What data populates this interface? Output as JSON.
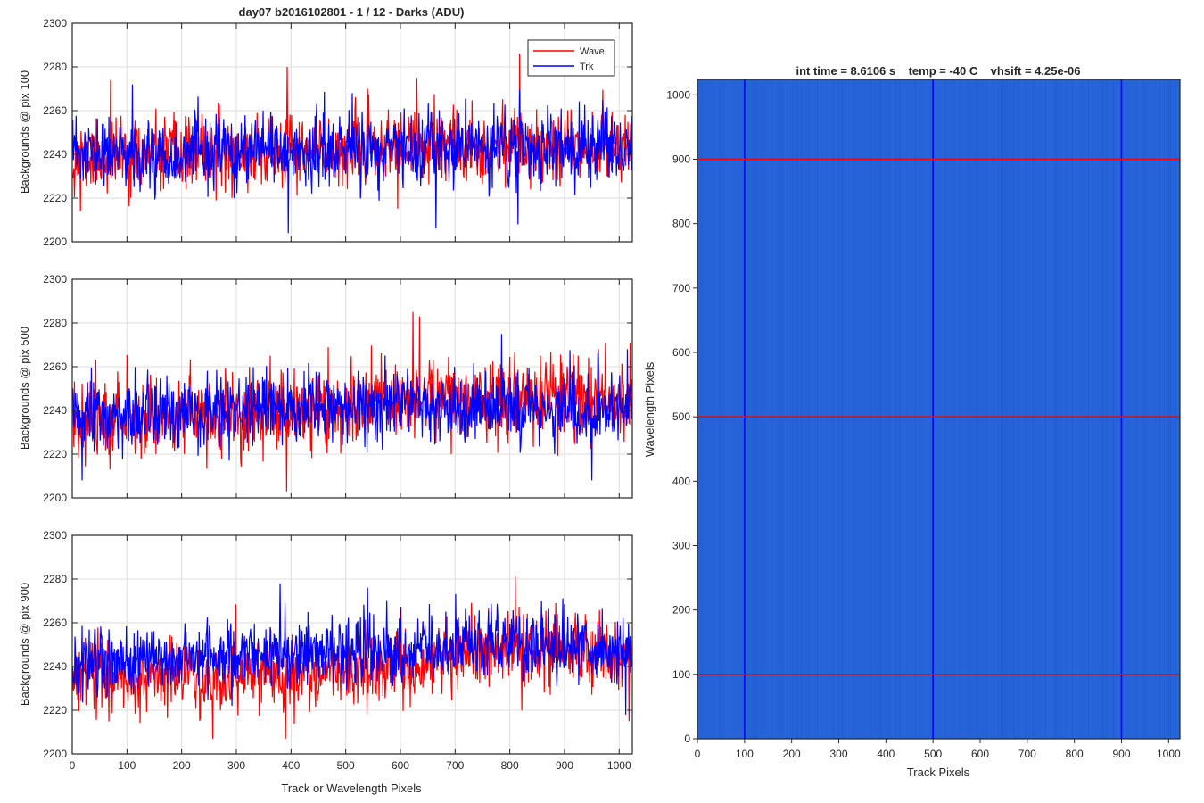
{
  "figure": {
    "background": "#ffffff"
  },
  "chart_data": [
    {
      "type": "line",
      "title": "day07 b2016102801 - 1 / 12 - Darks (ADU)",
      "xlabel": "",
      "ylabel": "Backgrounds @ pix 100",
      "xlim": [
        0,
        1024
      ],
      "ylim": [
        2200,
        2300
      ],
      "xticks": [
        0,
        100,
        200,
        300,
        400,
        500,
        600,
        700,
        800,
        900,
        1000
      ],
      "yticks": [
        2200,
        2220,
        2240,
        2260,
        2280,
        2300
      ],
      "show_xtick_labels": false,
      "grid": true,
      "legend": {
        "position": "top-right",
        "entries": [
          "Wave",
          "Trk"
        ]
      },
      "series": [
        {
          "name": "Wave",
          "color": "#ff0000",
          "mean": 2240,
          "noise": 8,
          "seed": 11,
          "trend": [
            [
              0,
              2238
            ],
            [
              200,
              2240
            ],
            [
              400,
              2241
            ],
            [
              600,
              2243
            ],
            [
              800,
              2245
            ],
            [
              1024,
              2244
            ]
          ],
          "spikes": [
            [
              70,
              2274
            ],
            [
              393,
              2280
            ],
            [
              630,
              2275
            ],
            [
              818,
              2286
            ],
            [
              15,
              2214
            ]
          ]
        },
        {
          "name": "Trk",
          "color": "#0000ff",
          "mean": 2241,
          "noise": 8,
          "seed": 23,
          "trend": [
            [
              0,
              2240
            ],
            [
              200,
              2240
            ],
            [
              400,
              2241
            ],
            [
              600,
              2242
            ],
            [
              800,
              2243
            ],
            [
              1024,
              2243
            ]
          ],
          "spikes": [
            [
              110,
              2272
            ],
            [
              395,
              2204
            ],
            [
              512,
              2268
            ],
            [
              665,
              2206
            ],
            [
              815,
              2208
            ]
          ]
        }
      ]
    },
    {
      "type": "line",
      "title": "",
      "xlabel": "",
      "ylabel": "Backgrounds @ pix 500",
      "xlim": [
        0,
        1024
      ],
      "ylim": [
        2200,
        2300
      ],
      "xticks": [
        0,
        100,
        200,
        300,
        400,
        500,
        600,
        700,
        800,
        900,
        1000
      ],
      "yticks": [
        2200,
        2220,
        2240,
        2260,
        2280,
        2300
      ],
      "show_xtick_labels": false,
      "grid": true,
      "legend": null,
      "series": [
        {
          "name": "Wave",
          "color": "#ff0000",
          "mean": 2240,
          "noise": 9,
          "seed": 37,
          "trend": [
            [
              0,
              2237
            ],
            [
              200,
              2238
            ],
            [
              400,
              2239
            ],
            [
              600,
              2246
            ],
            [
              800,
              2246
            ],
            [
              1024,
              2245
            ]
          ],
          "spikes": [
            [
              623,
              2285
            ],
            [
              635,
              2283
            ],
            [
              392,
              2203
            ],
            [
              1020,
              2271
            ],
            [
              975,
              2271
            ]
          ]
        },
        {
          "name": "Trk",
          "color": "#0000ff",
          "mean": 2240,
          "noise": 8,
          "seed": 51,
          "trend": [
            [
              0,
              2236
            ],
            [
              200,
              2238
            ],
            [
              400,
              2240
            ],
            [
              600,
              2242
            ],
            [
              800,
              2242
            ],
            [
              1024,
              2240
            ]
          ],
          "spikes": [
            [
              18,
              2208
            ],
            [
              785,
              2275
            ],
            [
              950,
              2208
            ],
            [
              1015,
              2268
            ]
          ]
        }
      ]
    },
    {
      "type": "line",
      "title": "",
      "xlabel": "Track or Wavelength Pixels",
      "ylabel": "Backgrounds @ pix 900",
      "xlim": [
        0,
        1024
      ],
      "ylim": [
        2200,
        2300
      ],
      "xticks": [
        0,
        100,
        200,
        300,
        400,
        500,
        600,
        700,
        800,
        900,
        1000
      ],
      "yticks": [
        2200,
        2220,
        2240,
        2260,
        2280,
        2300
      ],
      "show_xtick_labels": true,
      "grid": true,
      "legend": null,
      "series": [
        {
          "name": "Wave",
          "color": "#ff0000",
          "mean": 2238,
          "noise": 8,
          "seed": 67,
          "trend": [
            [
              0,
              2237
            ],
            [
              200,
              2235
            ],
            [
              400,
              2236
            ],
            [
              600,
              2240
            ],
            [
              800,
              2250
            ],
            [
              1024,
              2242
            ]
          ],
          "spikes": [
            [
              257,
              2207
            ],
            [
              390,
              2207
            ],
            [
              810,
              2281
            ],
            [
              1018,
              2215
            ]
          ]
        },
        {
          "name": "Trk",
          "color": "#0000ff",
          "mean": 2245,
          "noise": 8,
          "seed": 83,
          "trend": [
            [
              0,
              2240
            ],
            [
              200,
              2244
            ],
            [
              400,
              2246
            ],
            [
              600,
              2248
            ],
            [
              800,
              2252
            ],
            [
              1024,
              2246
            ]
          ],
          "spikes": [
            [
              380,
              2278
            ],
            [
              540,
              2276
            ],
            [
              575,
              2270
            ],
            [
              1012,
              2218
            ]
          ]
        }
      ]
    },
    {
      "type": "heatmap",
      "title": "int time = 8.6106 s    temp = -40 C    vhsift = 4.25e-06",
      "xlabel": "Track Pixels",
      "ylabel": "Wavelength Pixels",
      "xlim": [
        0,
        1024
      ],
      "ylim": [
        0,
        1024
      ],
      "xticks": [
        0,
        100,
        200,
        300,
        400,
        500,
        600,
        700,
        800,
        900,
        1000
      ],
      "yticks": [
        0,
        100,
        200,
        300,
        400,
        500,
        600,
        700,
        800,
        900,
        1000
      ],
      "fill_color": "#2563d8",
      "vertical_lines": {
        "values": [
          100,
          500,
          900
        ],
        "color": "#0000ff"
      },
      "horizontal_lines": {
        "values": [
          100,
          500,
          900
        ],
        "color": "#ff0000"
      }
    }
  ]
}
